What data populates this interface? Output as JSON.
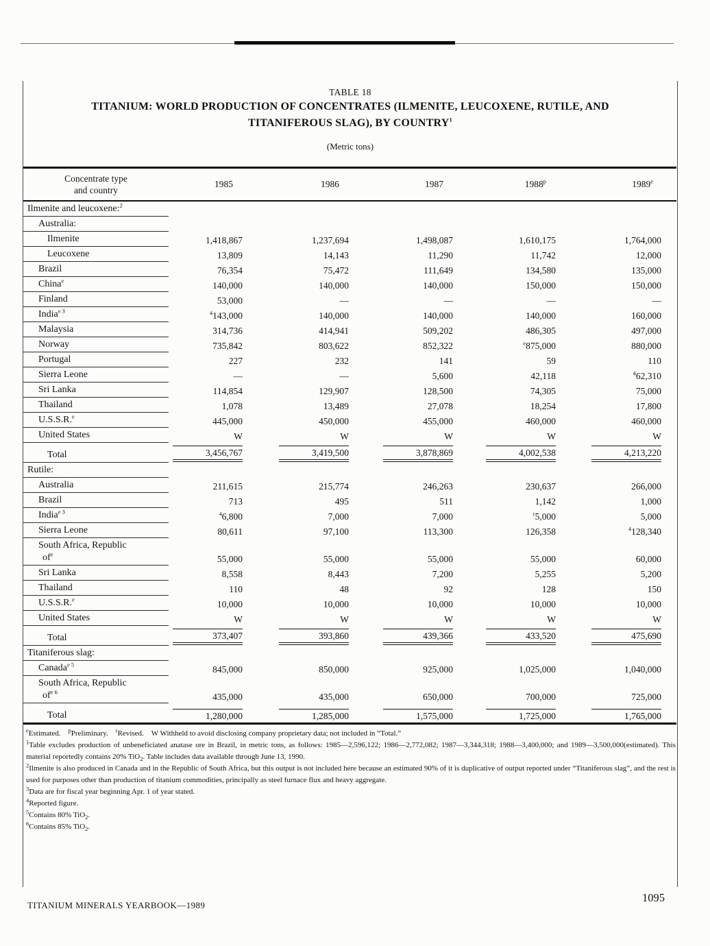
{
  "page": {
    "table_label": "TABLE 18",
    "title_line1": "TITANIUM: WORLD PRODUCTION OF CONCENTRATES (ILMENITE, LEUCOXENE, RUTILE, AND",
    "title_line2": "TITANIFEROUS SLAG), BY COUNTRY{1}",
    "subtitle": "(Metric tons)",
    "ink_color": "#131313",
    "paper_color": "#fcfcfb"
  },
  "table": {
    "label_header_1": "Concentrate type",
    "label_header_2": "and country",
    "years": [
      "1985",
      "1986",
      "1987",
      "1988{p}",
      "1989{e}"
    ],
    "rows": [
      {
        "t": "section",
        "indent": 0,
        "label": "Ilmenite and leucoxene:{2}"
      },
      {
        "t": "group",
        "indent": 1,
        "label": "Australia:"
      },
      {
        "t": "data",
        "indent": 2,
        "label": "Ilmenite",
        "values": [
          "1,418,867",
          "1,237,694",
          "1,498,087",
          "1,610,175",
          "1,764,000"
        ]
      },
      {
        "t": "data",
        "indent": 2,
        "label": "Leucoxene",
        "values": [
          "13,809",
          "14,143",
          "11,290",
          "11,742",
          "12,000"
        ]
      },
      {
        "t": "data",
        "indent": 1,
        "label": "Brazil",
        "values": [
          "76,354",
          "75,472",
          "111,649",
          "134,580",
          "135,000"
        ]
      },
      {
        "t": "data",
        "indent": 1,
        "label": "China{e}",
        "values": [
          "140,000",
          "140,000",
          "140,000",
          "150,000",
          "150,000"
        ]
      },
      {
        "t": "data",
        "indent": 1,
        "label": "Finland",
        "values": [
          "53,000",
          "—",
          "—",
          "—",
          "—"
        ]
      },
      {
        "t": "data",
        "indent": 1,
        "label": "India{e 3}",
        "values": [
          "{4}143,000",
          "140,000",
          "140,000",
          "140,000",
          "160,000"
        ]
      },
      {
        "t": "data",
        "indent": 1,
        "label": "Malaysia",
        "values": [
          "314,736",
          "414,941",
          "509,202",
          "486,305",
          "497,000"
        ]
      },
      {
        "t": "data",
        "indent": 1,
        "label": "Norway",
        "values": [
          "735,842",
          "803,622",
          "852,322",
          "{e}875,000",
          "880,000"
        ]
      },
      {
        "t": "data",
        "indent": 1,
        "label": "Portugal",
        "values": [
          "227",
          "232",
          "141",
          "59",
          "110"
        ]
      },
      {
        "t": "data",
        "indent": 1,
        "label": "Sierra Leone",
        "values": [
          "—",
          "—",
          "5,600",
          "42,118",
          "{4}62,310"
        ]
      },
      {
        "t": "data",
        "indent": 1,
        "label": "Sri Lanka",
        "values": [
          "114,854",
          "129,907",
          "128,500",
          "74,305",
          "75,000"
        ]
      },
      {
        "t": "data",
        "indent": 1,
        "label": "Thailand",
        "values": [
          "1,078",
          "13,489",
          "27,078",
          "18,254",
          "17,800"
        ]
      },
      {
        "t": "data",
        "indent": 1,
        "label": "U.S.S.R.{e}",
        "values": [
          "445,000",
          "450,000",
          "455,000",
          "460,000",
          "460,000"
        ]
      },
      {
        "t": "data",
        "indent": 1,
        "label": "United States",
        "values": [
          "W",
          "W",
          "W",
          "W",
          "W"
        ]
      },
      {
        "t": "total",
        "indent": 2,
        "label": "Total",
        "total_style": "double",
        "values": [
          "3,456,767",
          "3,419,500",
          "3,878,869",
          "4,002,538",
          "4,213,220"
        ]
      },
      {
        "t": "section",
        "indent": 0,
        "label": "Rutile:"
      },
      {
        "t": "data",
        "indent": 1,
        "label": "Australia",
        "values": [
          "211,615",
          "215,774",
          "246,263",
          "230,637",
          "266,000"
        ]
      },
      {
        "t": "data",
        "indent": 1,
        "label": "Brazil",
        "values": [
          "713",
          "495",
          "511",
          "1,142",
          "1,000"
        ]
      },
      {
        "t": "data",
        "indent": 1,
        "label": "India{e 3}",
        "values": [
          "{4}6,800",
          "7,000",
          "7,000",
          "{r}5,000",
          "5,000"
        ]
      },
      {
        "t": "data",
        "indent": 1,
        "label": "Sierra Leone",
        "values": [
          "80,611",
          "97,100",
          "113,300",
          "126,358",
          "{4}128,340"
        ]
      },
      {
        "t": "data2",
        "indent": 1,
        "label": "South Africa, Republic",
        "label2": "of{e}",
        "values": [
          "55,000",
          "55,000",
          "55,000",
          "55,000",
          "60,000"
        ]
      },
      {
        "t": "data",
        "indent": 1,
        "label": "Sri Lanka",
        "values": [
          "8,558",
          "8,443",
          "7,200",
          "5,255",
          "5,200"
        ]
      },
      {
        "t": "data",
        "indent": 1,
        "label": "Thailand",
        "values": [
          "110",
          "48",
          "92",
          "128",
          "150"
        ]
      },
      {
        "t": "data",
        "indent": 1,
        "label": "U.S.S.R.{e}",
        "values": [
          "10,000",
          "10,000",
          "10,000",
          "10,000",
          "10,000"
        ]
      },
      {
        "t": "data",
        "indent": 1,
        "label": "United States",
        "values": [
          "W",
          "W",
          "W",
          "W",
          "W"
        ]
      },
      {
        "t": "total",
        "indent": 2,
        "label": "Total",
        "total_style": "double",
        "values": [
          "373,407",
          "393,860",
          "439,366",
          "433,520",
          "475,690"
        ]
      },
      {
        "t": "section",
        "indent": 0,
        "label": "Titaniferous slag:"
      },
      {
        "t": "data",
        "indent": 1,
        "label": "Canada{e 5}",
        "values": [
          "845,000",
          "850,000",
          "925,000",
          "1,025,000",
          "1,040,000"
        ]
      },
      {
        "t": "data2",
        "indent": 1,
        "label": "South Africa, Republic",
        "label2": "of{e 6}",
        "values": [
          "435,000",
          "435,000",
          "650,000",
          "700,000",
          "725,000"
        ]
      },
      {
        "t": "total",
        "indent": 2,
        "label": "Total",
        "total_style": "single",
        "values": [
          "1,280,000",
          "1,285,000",
          "1,575,000",
          "1,725,000",
          "1,765,000"
        ]
      }
    ]
  },
  "footnotes": [
    "{e}Estimated.  {p}Preliminary.  {r}Revised.  W Withheld to avoid disclosing company proprietary data; not included in “Total.”",
    "{1}Table excludes production of unbeneficiated anatase ore in Brazil, in metric tons, as follows: 1985—2,596,122; 1986—2,772,082; 1987—3,344,318; 1988—3,400,000; and 1989—3,500,000(estimated). This material reportedly contains 20% TiO[2]. Table includes data available through June 13, 1990.",
    "{2}Ilmenite is also produced in Canada and in the Republic of South Africa, but this output is not included here because an estimated 90% of it is duplicative of output reported under “Titaniferous slag”, and the rest is used for purposes other than production of titanium commodities, principally as steel furnace flux and heavy aggregate.",
    "{3}Data are for fiscal year beginning Apr. 1 of year stated.",
    "{4}Reported figure.",
    "{5}Contains 80% TiO[2].",
    "{6}Contains 85% TiO[2]."
  ],
  "footer": {
    "left": "TITANIUM MINERALS YEARBOOK—1989",
    "page_number": "1095"
  }
}
